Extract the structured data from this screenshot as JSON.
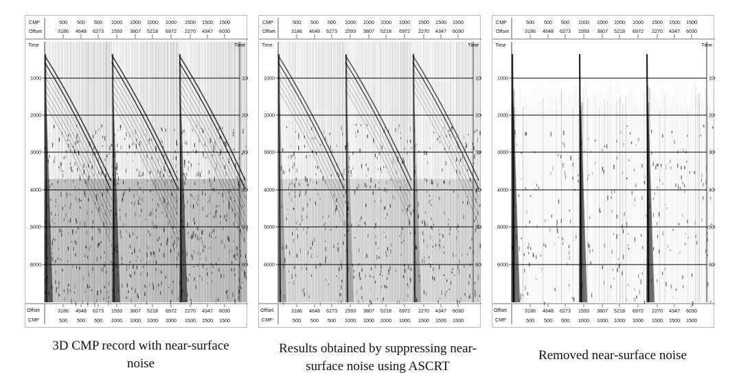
{
  "axis": {
    "cmp_label": "CMP",
    "offset_label": "Offset",
    "time_label": "Time",
    "cmp_ticks": [
      "500",
      "500",
      "500",
      "1000",
      "1000",
      "1000",
      "1000",
      "1500",
      "1500",
      "1500"
    ],
    "offset_ticks": [
      "3186",
      "4648",
      "6273",
      "1593",
      "3807",
      "5218",
      "6972",
      "2270",
      "4347",
      "6030"
    ],
    "time_ticks": [
      "1000",
      "2000",
      "3000",
      "4000",
      "5000",
      "6000"
    ]
  },
  "panels": [
    {
      "id": "original",
      "caption": "3D CMP record with near-surface noise",
      "noise": "heavy"
    },
    {
      "id": "ascrt",
      "caption": "Results obtained by suppressing near-surface noise using ASCRT",
      "noise": "medium"
    },
    {
      "id": "removed",
      "caption": "Removed near-surface noise",
      "noise": "removed"
    }
  ]
}
